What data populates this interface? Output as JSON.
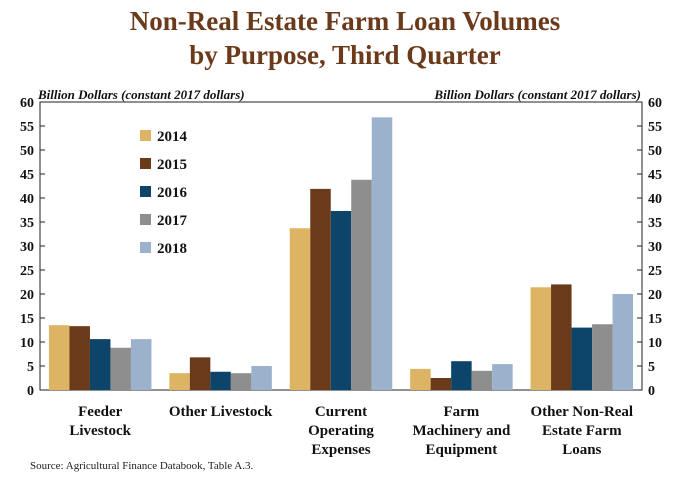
{
  "title_line1": "Non-Real Estate Farm Loan Volumes",
  "title_line2": "by Purpose, Third Quarter",
  "source": "Source: Agricultural Finance Databook, Table A.3.",
  "chart_data": {
    "type": "bar",
    "title": "Non-Real Estate Farm Loan Volumes by Purpose, Third Quarter",
    "ylabel_left": "Billion Dollars (constant 2017 dollars)",
    "ylabel_right": "Billion Dollars (constant 2017 dollars)",
    "ylim": [
      0,
      60
    ],
    "yticks": [
      0,
      5,
      10,
      15,
      20,
      25,
      30,
      35,
      40,
      45,
      50,
      55,
      60
    ],
    "grid": false,
    "legend_position": "top-left",
    "categories": [
      [
        "Feeder",
        "Livestock"
      ],
      [
        "Other Livestock"
      ],
      [
        "Current",
        "Operating",
        "Expenses"
      ],
      [
        "Farm",
        "Machinery and",
        "Equipment"
      ],
      [
        "Other Non-Real",
        "Estate Farm",
        "Loans"
      ]
    ],
    "series": [
      {
        "name": "2014",
        "color": "#ddb463",
        "values": [
          13.5,
          3.5,
          33.7,
          4.4,
          21.4
        ]
      },
      {
        "name": "2015",
        "color": "#6b3a1a",
        "values": [
          13.3,
          6.8,
          41.9,
          2.5,
          22.0
        ]
      },
      {
        "name": "2016",
        "color": "#0d4469",
        "values": [
          10.6,
          3.8,
          37.3,
          6.0,
          13.0
        ]
      },
      {
        "name": "2017",
        "color": "#8e8e8e",
        "values": [
          8.8,
          3.5,
          43.8,
          4.0,
          13.7
        ]
      },
      {
        "name": "2018",
        "color": "#9cb2cc",
        "values": [
          10.6,
          5.0,
          56.8,
          5.4,
          20.0
        ]
      }
    ]
  }
}
